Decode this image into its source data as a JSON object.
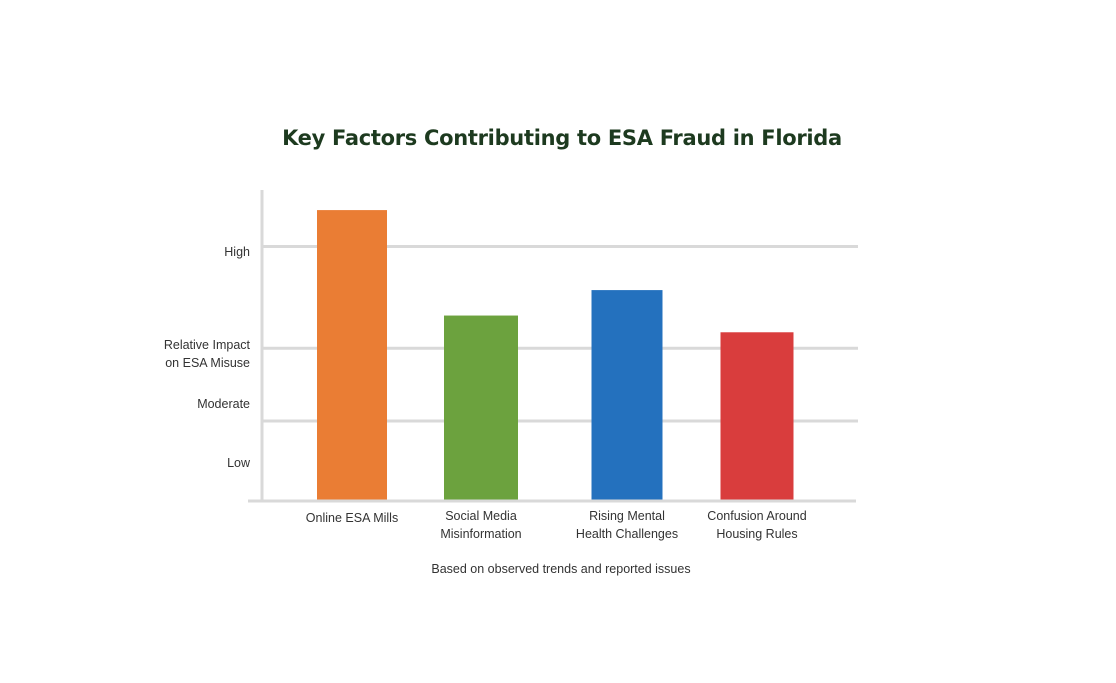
{
  "chart_data": {
    "type": "bar",
    "title": "Key Factors Contributing to ESA Fraud in Florida",
    "ylabel": "Relative Impact\non ESA Misuse",
    "xlabel": "Based on observed trends and reported issues",
    "categories": [
      "Online ESA Mills",
      "Social Media\nMisinformation",
      "Rising Mental\nHealth Challenges",
      "Confusion Around\nHousing Rules"
    ],
    "yticks": [
      {
        "label": "Low",
        "value": 0.5
      },
      {
        "label": "Moderate",
        "value": 1.3
      },
      {
        "label": "High",
        "value": 3.4
      }
    ],
    "ylim": [
      0,
      4.4
    ],
    "gridlines": [
      1.1,
      2.1,
      3.5
    ],
    "values": [
      4.0,
      2.55,
      2.9,
      2.32
    ],
    "colors": [
      "#ea7d34",
      "#6ca23e",
      "#2471be",
      "#d93d3d"
    ],
    "title_color": "#1d3a1f",
    "grid": true
  }
}
